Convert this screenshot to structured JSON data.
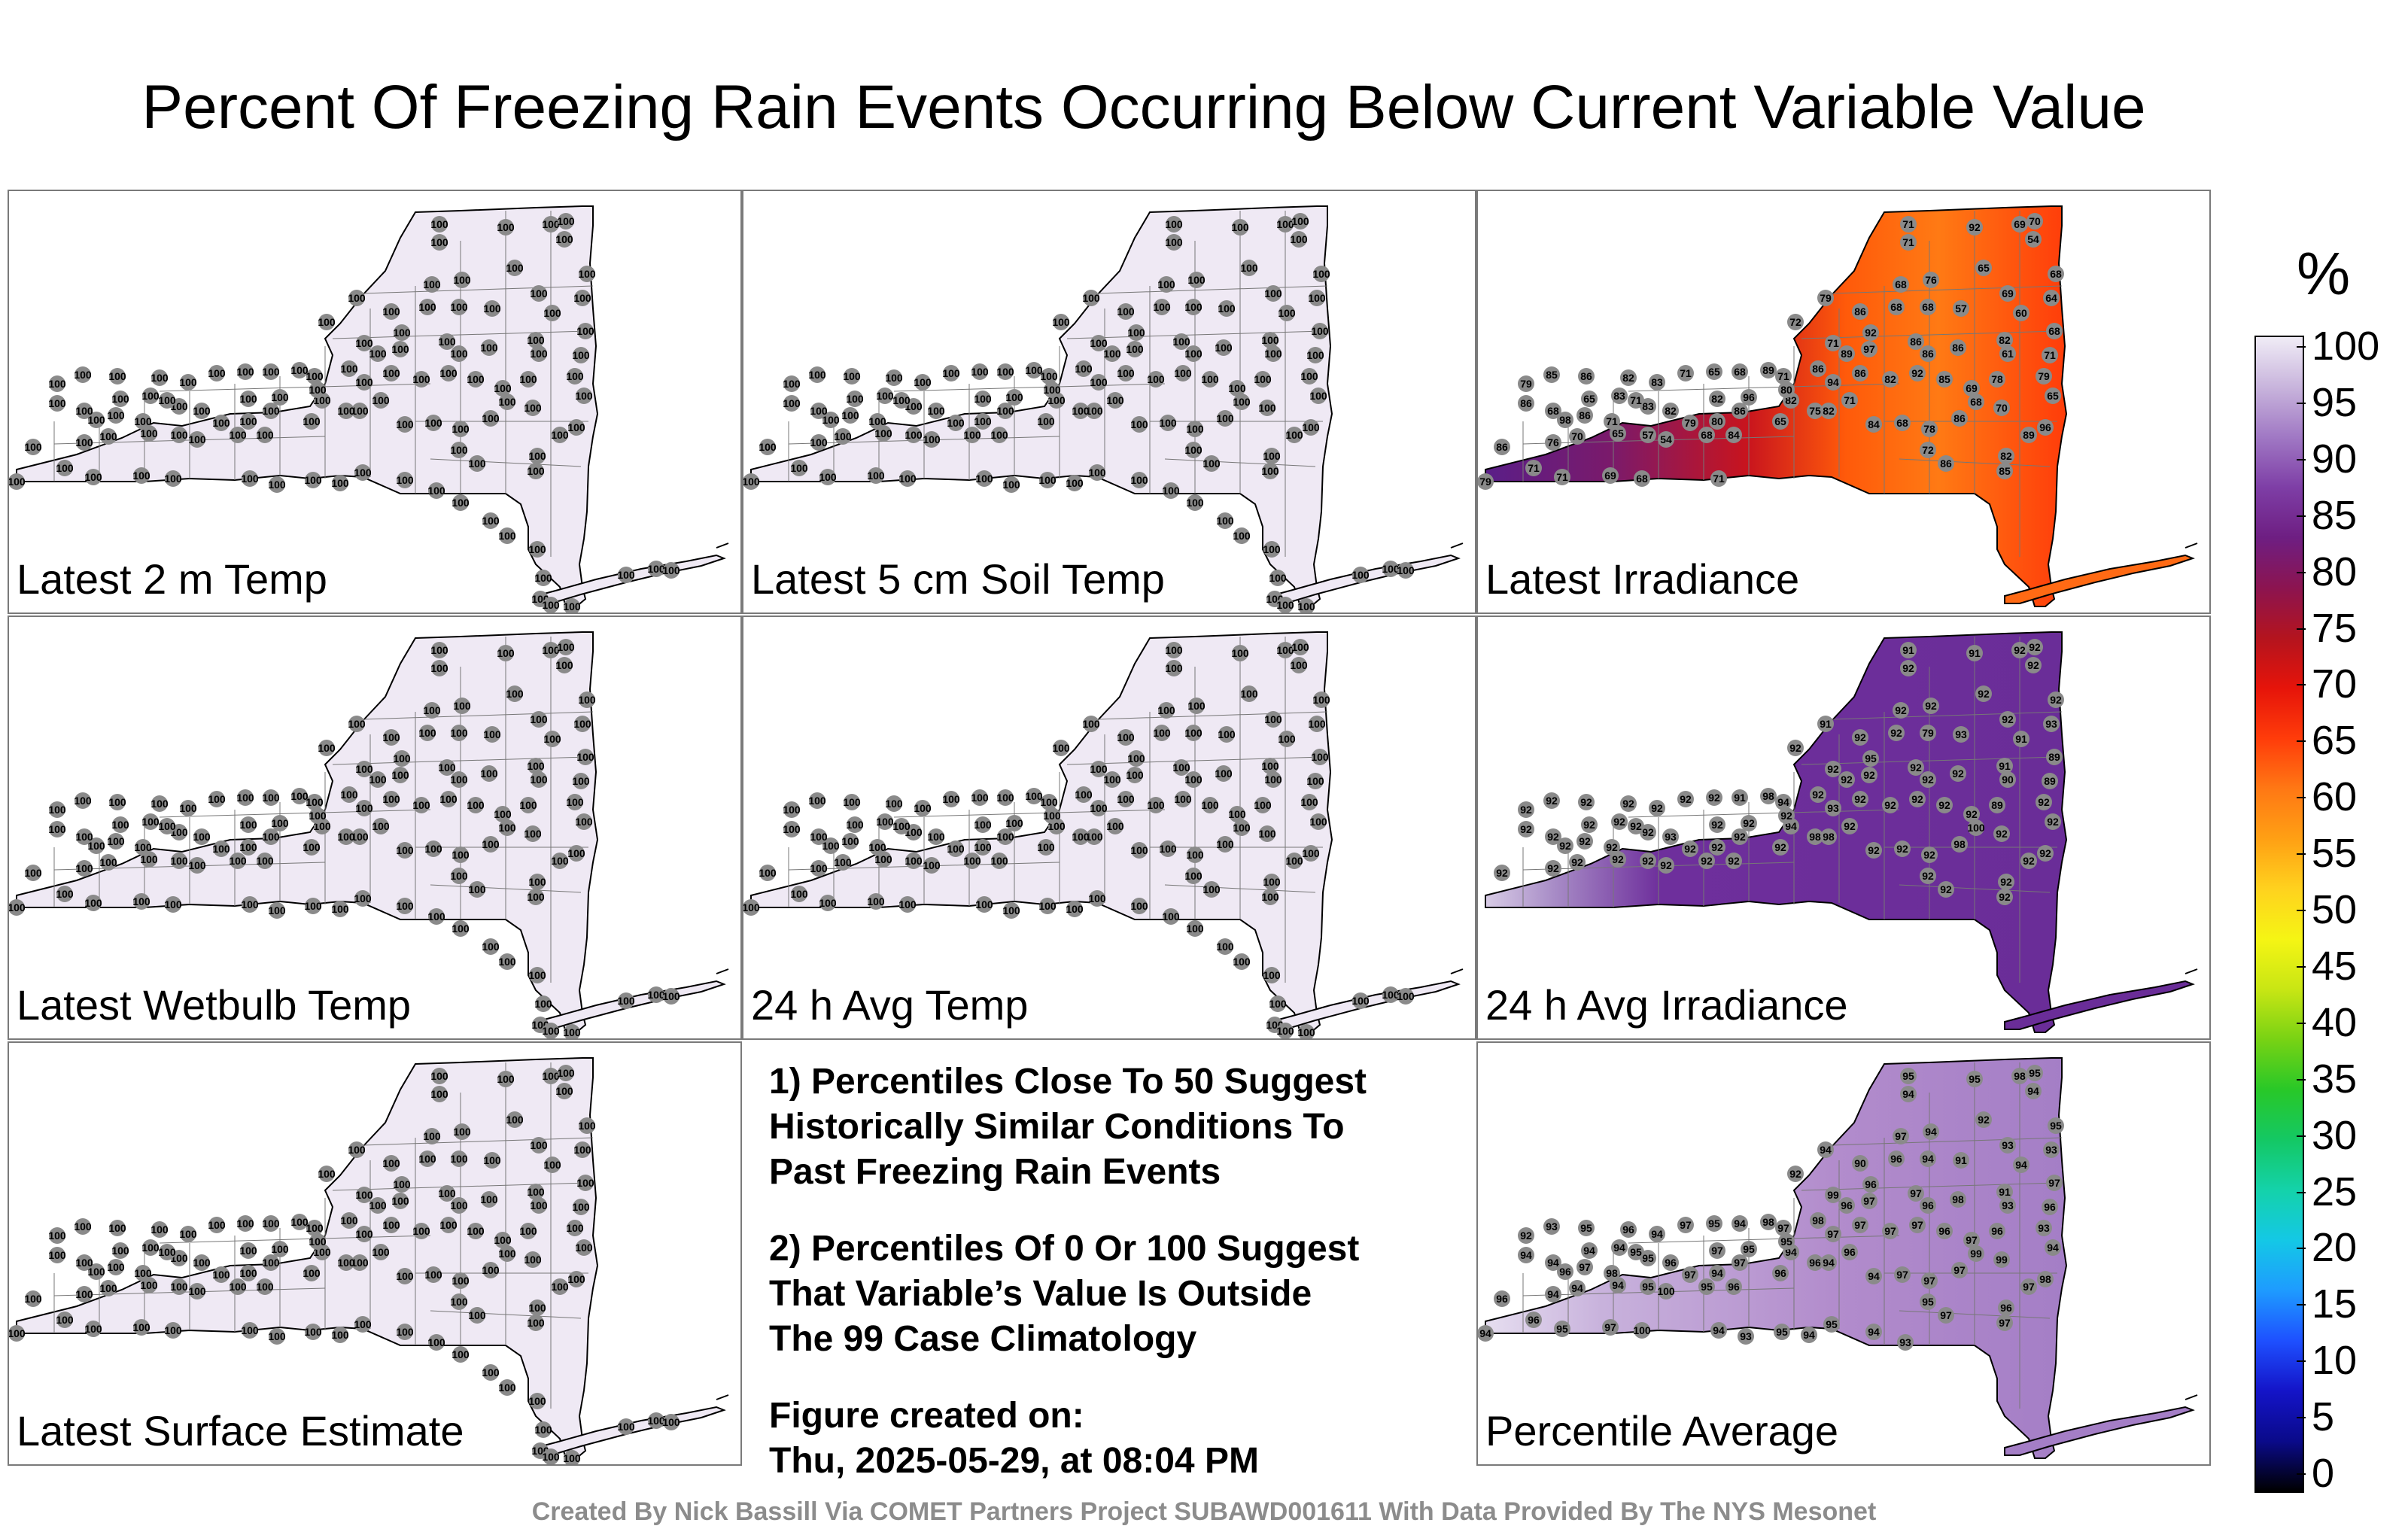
{
  "title": "Percent Of Freezing Rain Events Occurring Below Current Variable Value",
  "panels": [
    {
      "label": "Latest 2 m Temp",
      "fill": "#efe9f4",
      "stations": "uniform",
      "value": "100"
    },
    {
      "label": "Latest 5 cm Soil Temp",
      "fill": "#efe9f4",
      "stations": "uniform",
      "value": "100"
    },
    {
      "label": "Latest Irradiance",
      "fill": "#e8521c",
      "stations": "irr"
    },
    {
      "label": "Latest Wetbulb Temp",
      "fill": "#efe9f4",
      "stations": "uniform",
      "value": "100"
    },
    {
      "label": "24 h Avg Temp",
      "fill": "#efe9f4",
      "stations": "uniform",
      "value": "100"
    },
    {
      "label": "24 h Avg Irradiance",
      "fill": "#6a2d98",
      "stations": "avgirr"
    },
    {
      "label": "Latest Surface Estimate",
      "fill": "#efe9f4",
      "stations": "uniform",
      "value": "100"
    },
    {
      "label": "Percentile Average",
      "fill": "#b690cf",
      "stations": "pavg"
    }
  ],
  "irr_values": [
    "71",
    "71",
    "92",
    "69",
    "70",
    "54",
    "65",
    "76",
    "68",
    "79",
    "72",
    "86",
    "68",
    "68",
    "57",
    "69",
    "60",
    "68",
    "64",
    "68",
    "71",
    "79",
    "65",
    "82",
    "61",
    "78",
    "86",
    "86",
    "86",
    "92",
    "97",
    "89",
    "71",
    "86",
    "71",
    "89",
    "94",
    "86",
    "82",
    "92",
    "85",
    "69",
    "68",
    "86",
    "70",
    "96",
    "89",
    "82",
    "85",
    "86",
    "72",
    "78",
    "68",
    "84",
    "71",
    "82",
    "75",
    "82",
    "80",
    "65",
    "96",
    "86",
    "82",
    "80",
    "84",
    "68",
    "79",
    "82",
    "83",
    "71",
    "83",
    "71",
    "86",
    "65",
    "98",
    "68",
    "86",
    "79",
    "85",
    "86",
    "82",
    "83",
    "71",
    "65",
    "68",
    "54",
    "57",
    "65",
    "70",
    "76",
    "86",
    "79",
    "71",
    "71",
    "69",
    "68",
    "71"
  ],
  "avgirr_values": [
    "91",
    "92",
    "91",
    "92",
    "92",
    "92",
    "92",
    "92",
    "92",
    "91",
    "92",
    "92",
    "92",
    "79",
    "93",
    "92",
    "91",
    "92",
    "93",
    "89",
    "89",
    "92",
    "92",
    "91",
    "90",
    "89",
    "92",
    "92",
    "92",
    "95",
    "92",
    "92",
    "92",
    "92",
    "94",
    "98",
    "93",
    "92",
    "92",
    "92",
    "92",
    "92",
    "100",
    "98",
    "92",
    "92",
    "92",
    "92",
    "92",
    "92",
    "92",
    "92",
    "92",
    "92",
    "92",
    "98",
    "98",
    "94",
    "92",
    "92",
    "92",
    "92",
    "92",
    "92",
    "92",
    "92",
    "92",
    "93",
    "92",
    "92",
    "92",
    "92",
    "92",
    "92",
    "92",
    "92",
    "92",
    "92",
    "92",
    "92",
    "92",
    "92",
    "92",
    "92",
    "91",
    "92",
    "92",
    "92",
    "92",
    "92",
    "92"
  ],
  "pavg_values": [
    "95",
    "94",
    "95",
    "98",
    "95",
    "94",
    "92",
    "94",
    "97",
    "94",
    "92",
    "90",
    "96",
    "94",
    "91",
    "93",
    "94",
    "95",
    "93",
    "97",
    "96",
    "93",
    "94",
    "91",
    "93",
    "96",
    "98",
    "96",
    "97",
    "96",
    "97",
    "96",
    "99",
    "98",
    "97",
    "98",
    "97",
    "97",
    "97",
    "97",
    "96",
    "97",
    "99",
    "97",
    "99",
    "98",
    "97",
    "96",
    "97",
    "97",
    "95",
    "97",
    "97",
    "94",
    "96",
    "94",
    "96",
    "94",
    "95",
    "96",
    "95",
    "97",
    "97",
    "94",
    "96",
    "95",
    "97",
    "96",
    "95",
    "95",
    "94",
    "98",
    "97",
    "94",
    "96",
    "94",
    "94",
    "92",
    "93",
    "95",
    "96",
    "94",
    "97",
    "95",
    "94",
    "100",
    "95",
    "94",
    "94",
    "94",
    "96",
    "94",
    "96",
    "95",
    "97",
    "100",
    "94",
    "93",
    "95",
    "94",
    "95",
    "94",
    "93"
  ],
  "notes": [
    "1) Percentiles Close To 50 Suggest\nHistorically Similar Conditions To\nPast Freezing Rain Events",
    "2) Percentiles Of 0 Or 100 Suggest\nThat Variable’s Value Is Outside\nThe 99 Case Climatology",
    "Figure created on:\nThu, 2025-05-29, at 08:04 PM"
  ],
  "legend": {
    "unit": "%",
    "ticks": [
      "100",
      "95",
      "90",
      "85",
      "80",
      "75",
      "70",
      "65",
      "60",
      "55",
      "50",
      "45",
      "40",
      "35",
      "30",
      "25",
      "20",
      "15",
      "10",
      "5",
      "0"
    ],
    "colors": [
      "#000000",
      "#0a0a8a",
      "#1414c8",
      "#1e50ff",
      "#1e9bff",
      "#14c8e6",
      "#14d2aa",
      "#14c864",
      "#28c828",
      "#78d214",
      "#c8e614",
      "#f5f514",
      "#ffd21e",
      "#ffa014",
      "#ff7814",
      "#ff3c0a",
      "#e6140a",
      "#b4141e",
      "#8c1450",
      "#6e1e82",
      "#7e3ea6",
      "#a078c4",
      "#c8b4dc",
      "#f0ecf6"
    ]
  },
  "footer": "Created By Nick Bassill Via COMET Partners Project SUBAWD001611 With Data Provided By The NYS Mesonet"
}
